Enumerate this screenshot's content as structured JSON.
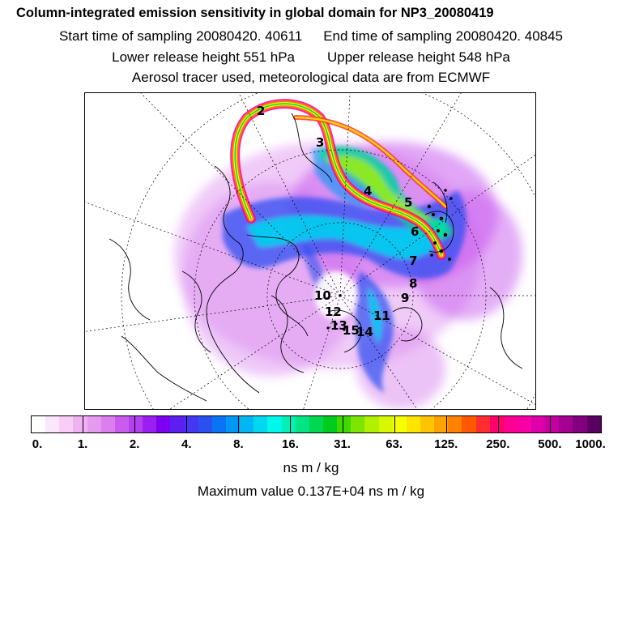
{
  "header": {
    "title": "Column-integrated emission sensitivity in global domain for NP3_20080419",
    "start_time": "Start time of sampling 20080420. 40611",
    "end_time": "End time of sampling 20080420. 40845",
    "lower_release": "Lower release height  551 hPa",
    "upper_release": "Upper release height  548 hPa",
    "tracer_info": "Aerosol tracer used, meteorological data are from ECMWF"
  },
  "map": {
    "description_name": "polar stereographic emission sensitivity map",
    "day_labels": [
      "2",
      "3",
      "4",
      "5",
      "6",
      "7",
      "8",
      "9",
      "10",
      "11",
      "12",
      "13",
      "14",
      "15"
    ]
  },
  "colorbar": {
    "colors": [
      "#ffffff",
      "#fbe7fb",
      "#f6cef6",
      "#f0b2f3",
      "#e59af0",
      "#da7ef0",
      "#c95cef",
      "#b540ef",
      "#9a1ff0",
      "#7d00f2",
      "#5d1ff1",
      "#4637f2",
      "#2b50f2",
      "#0a74f4",
      "#0098f5",
      "#00b7f3",
      "#00d8f0",
      "#00f7ec",
      "#00f0b5",
      "#00e483",
      "#00d851",
      "#00cc20",
      "#3fd800",
      "#7de600",
      "#b0f100",
      "#d8f800",
      "#f5ff00",
      "#ffe400",
      "#ffc400",
      "#ffa300",
      "#ff8200",
      "#ff5900",
      "#ff2d2f",
      "#ff006c",
      "#ff0090",
      "#f800a6",
      "#de00a8",
      "#c2009e",
      "#a40091",
      "#820080",
      "#5a0061"
    ],
    "tick_labels": [
      "0.",
      "1.",
      "2.",
      "4.",
      "8.",
      "16.",
      "31.",
      "63.",
      "125.",
      "250.",
      "500.",
      "1000."
    ],
    "unit": "ns m / kg"
  },
  "max_value": "Maximum value  0.137E+04 ns m / kg"
}
